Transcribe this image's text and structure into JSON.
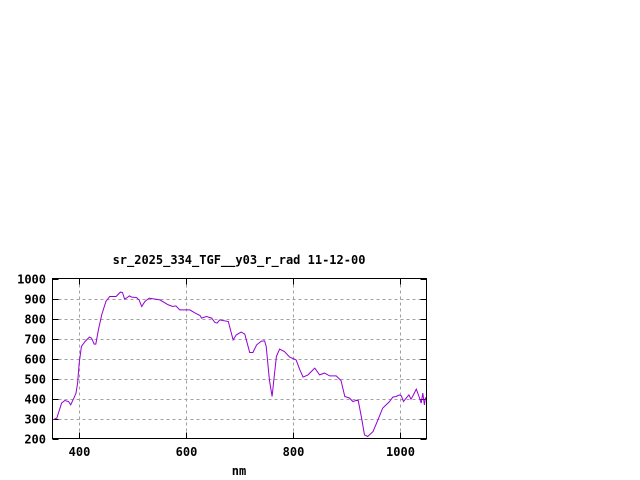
{
  "chart_data": {
    "type": "line",
    "title": "sr_2025_334_TGF__y03_r_rad 11-12-00",
    "xlabel": "nm",
    "ylabel": "",
    "xlim": [
      350,
      1050
    ],
    "ylim": [
      200,
      1000
    ],
    "xticks": [
      400,
      600,
      800,
      1000
    ],
    "yticks": [
      200,
      300,
      400,
      500,
      600,
      700,
      800,
      900,
      1000
    ],
    "grid": true,
    "line_color": "#9400d3",
    "series": [
      {
        "x": [
          350,
          358,
          367,
          373,
          380,
          384,
          390,
          394,
          397,
          400,
          404,
          411,
          419,
          423,
          428,
          431,
          436,
          442,
          450,
          457,
          469,
          477,
          481,
          485,
          490,
          494,
          498,
          507,
          512,
          517,
          523,
          531,
          539,
          551,
          567,
          575,
          581,
          588,
          598,
          607,
          617,
          626,
          629,
          638,
          648,
          654,
          658,
          663,
          679,
          688,
          694,
          703,
          710,
          719,
          725,
          732,
          741,
          747,
          750,
          756,
          761,
          765,
          769,
          775,
          784,
          794,
          806,
          813,
          819,
          828,
          841,
          850,
          859,
          869,
          881,
          890,
          897,
          906,
          912,
          922,
          928,
          934,
          940,
          950,
          959,
          968,
          981,
          987,
          993,
          999,
          1003,
          1007,
          1012,
          1017,
          1021,
          1024,
          1031,
          1036,
          1040,
          1043,
          1046,
          1048,
          1050
        ],
        "y": [
          293,
          302,
          377,
          390,
          385,
          368,
          402,
          427,
          477,
          577,
          660,
          685,
          707,
          702,
          672,
          672,
          743,
          818,
          885,
          910,
          910,
          932,
          930,
          897,
          905,
          913,
          907,
          905,
          893,
          860,
          885,
          902,
          898,
          893,
          868,
          860,
          863,
          843,
          843,
          843,
          827,
          815,
          802,
          810,
          802,
          780,
          777,
          793,
          785,
          693,
          718,
          732,
          722,
          630,
          630,
          668,
          687,
          688,
          660,
          493,
          410,
          510,
          610,
          647,
          635,
          607,
          593,
          543,
          507,
          518,
          552,
          518,
          527,
          513,
          513,
          490,
          410,
          402,
          385,
          393,
          310,
          218,
          210,
          235,
          293,
          352,
          385,
          407,
          410,
          418,
          413,
          385,
          402,
          418,
          397,
          410,
          447,
          410,
          377,
          427,
          368,
          402,
          395
        ]
      }
    ]
  }
}
